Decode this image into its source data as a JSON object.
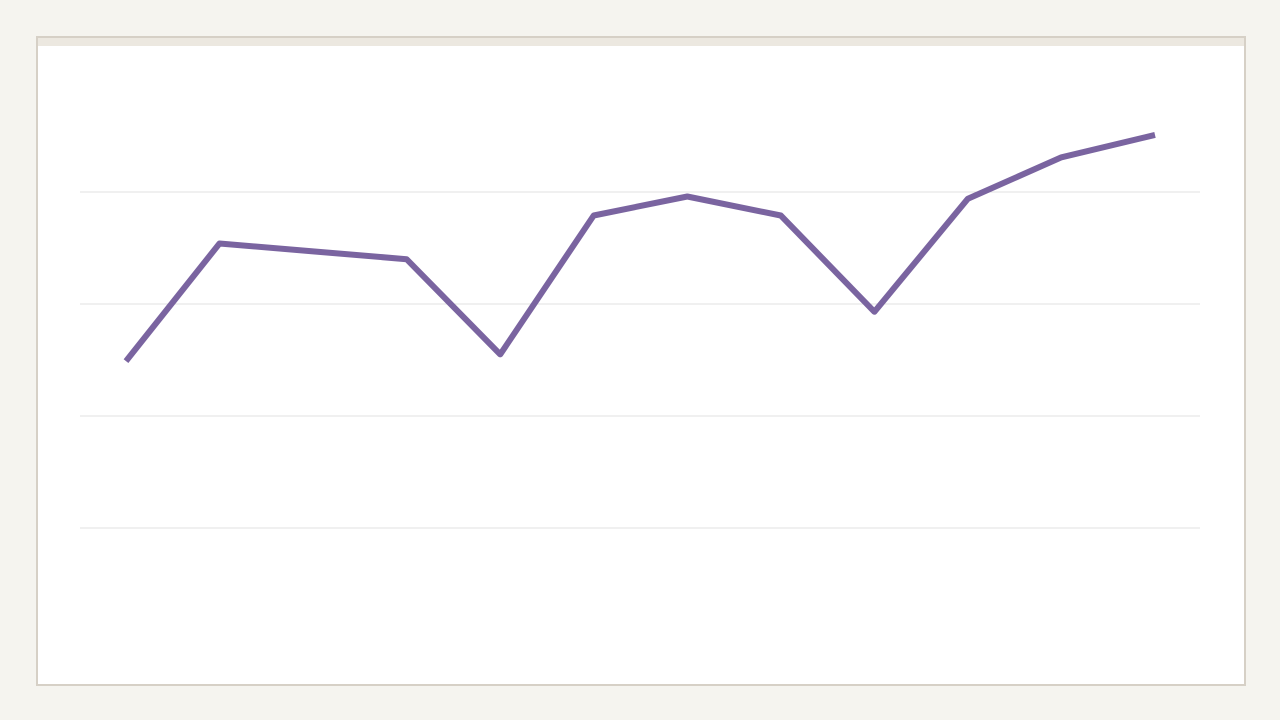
{
  "chart_data": {
    "type": "line",
    "values": [
      2.49,
      3.54,
      3.47,
      3.4,
      2.55,
      3.79,
      3.96,
      3.79,
      2.93,
      3.94,
      4.31,
      4.51
    ],
    "color": "#7a64a0",
    "ylim": [
      0,
      5
    ],
    "yticks": [
      1,
      2,
      3,
      4
    ],
    "grid": true
  }
}
